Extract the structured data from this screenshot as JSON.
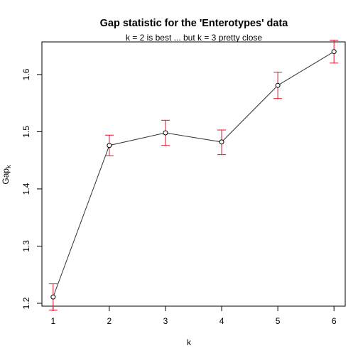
{
  "chart_data": {
    "type": "line",
    "title": "Gap statistic for the 'Enterotypes' data",
    "subtitle": "k = 2 is best ... but  k = 3  pretty close",
    "xlabel": "k",
    "ylabel_main": "Gap",
    "ylabel_sub": "k",
    "x": [
      1,
      2,
      3,
      4,
      5,
      6
    ],
    "series": [
      {
        "values": [
          1.211,
          1.476,
          1.498,
          1.482,
          1.581,
          1.64
        ],
        "error_low": [
          1.188,
          1.458,
          1.476,
          1.46,
          1.558,
          1.62
        ],
        "error_high": [
          1.234,
          1.494,
          1.52,
          1.503,
          1.604,
          1.66
        ]
      }
    ],
    "xlim": [
      0.8,
      6.2
    ],
    "ylim": [
      1.195,
      1.657
    ],
    "x_ticks": [
      "1",
      "2",
      "3",
      "4",
      "5",
      "6"
    ],
    "x_tick_values": [
      1,
      2,
      3,
      4,
      5,
      6
    ],
    "y_ticks": [
      "1.2",
      "1.3",
      "1.4",
      "1.5",
      "1.6"
    ],
    "y_tick_values": [
      1.2,
      1.3,
      1.4,
      1.5,
      1.6
    ],
    "grid": false,
    "legend": "none",
    "colors": {
      "line": "#333333",
      "points": "#000000",
      "error_bars": "#e0102a",
      "axes": "#000000"
    }
  }
}
